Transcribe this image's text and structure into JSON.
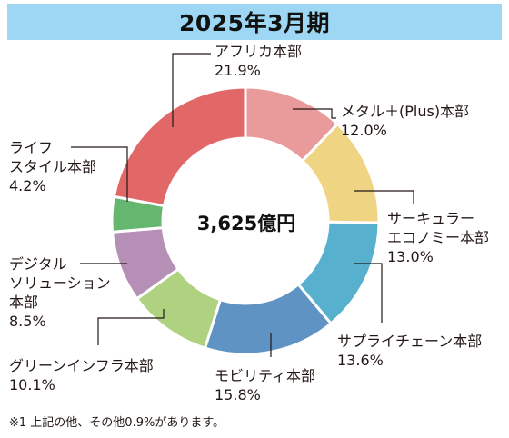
{
  "title": "2025年3月期",
  "center_label": "3,625億円",
  "footnote": "※1 上記の他、その他0.9%があります。",
  "chart_data": {
    "type": "pie",
    "donut": true,
    "total_label": "3,625億円",
    "direction": "clockwise from top",
    "slices": [
      {
        "name": "メタル＋(Plus)本部",
        "value": 12.0,
        "value_label": "12.0%",
        "color": "#e99a9b"
      },
      {
        "name": "サーキュラーエコノミー本部",
        "value": 13.0,
        "value_label": "13.0%",
        "color": "#efd583"
      },
      {
        "name": "サプライチェーン本部",
        "value": 13.6,
        "value_label": "13.6%",
        "color": "#58b0cf"
      },
      {
        "name": "モビリティ本部",
        "value": 15.8,
        "value_label": "15.8%",
        "color": "#5e93c3"
      },
      {
        "name": "グリーンインフラ本部",
        "value": 10.1,
        "value_label": "10.1%",
        "color": "#aed280"
      },
      {
        "name": "デジタルソリューション本部",
        "value": 8.5,
        "value_label": "8.5%",
        "color": "#b68fb6"
      },
      {
        "name": "ライフスタイル本部",
        "value": 4.2,
        "value_label": "4.2%",
        "color": "#65b66e"
      },
      {
        "name": "アフリカ本部",
        "value": 21.9,
        "value_label": "21.9%",
        "color": "#e26767"
      }
    ]
  },
  "labels": {
    "metal": {
      "lines": [
        "メタル＋(Plus)本部"
      ],
      "value": "12.0%"
    },
    "circular": {
      "lines": [
        "サーキュラー",
        "エコノミー本部"
      ],
      "value": "13.0%"
    },
    "supply": {
      "lines": [
        "サプライチェーン本部"
      ],
      "value": "13.6%"
    },
    "mobility": {
      "lines": [
        "モビリティ本部"
      ],
      "value": "15.8%"
    },
    "green": {
      "lines": [
        "グリーンインフラ本部"
      ],
      "value": "10.1%"
    },
    "digital": {
      "lines": [
        "デジタル",
        "ソリューション",
        "本部"
      ],
      "value": "8.5%"
    },
    "lifestyle": {
      "lines": [
        "ライフ",
        "スタイル本部"
      ],
      "value": "4.2%"
    },
    "africa": {
      "lines": [
        "アフリカ本部"
      ],
      "value": "21.9%"
    }
  }
}
